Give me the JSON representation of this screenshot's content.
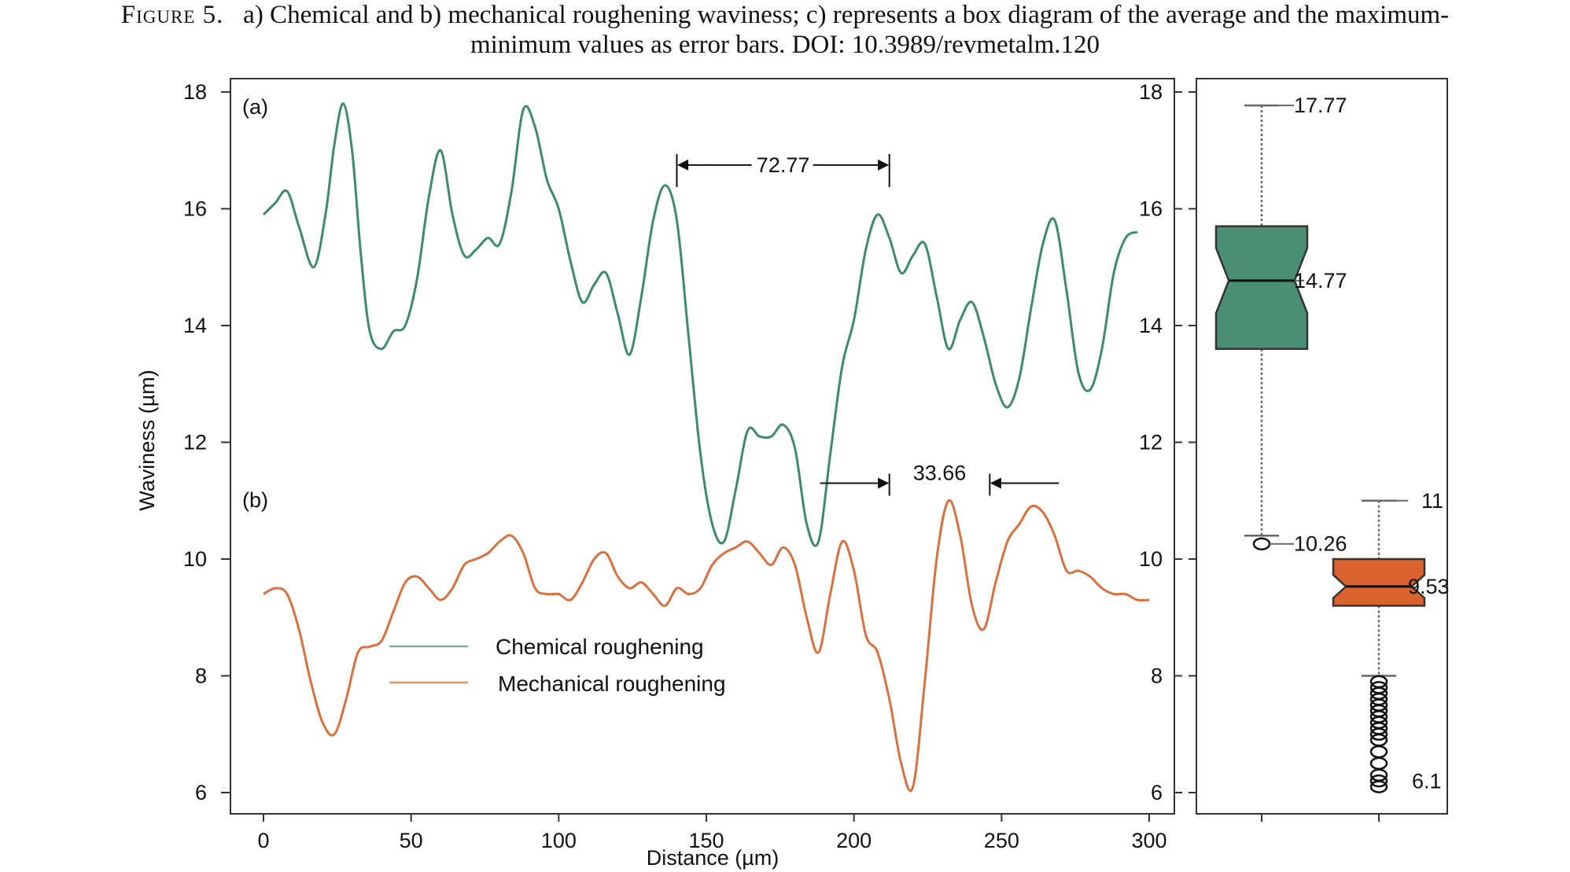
{
  "caption": {
    "figure_label": "Figure 5.",
    "line1": "a) Chemical and b) mechanical roughening waviness; c) represents a box diagram of the average and the maximum-",
    "line2": "minimum values as error bars. ",
    "doi": "DOI: 10.3989/revmetalm.120"
  },
  "colors": {
    "chemical": "#4a8f75",
    "chemical_line": "#3d8a6e",
    "mechanical": "#d9622e",
    "mechanical_line": "#d9703f",
    "axis": "#333333"
  },
  "chart_data": [
    {
      "type": "line",
      "title": "",
      "xlabel": "Distance (µm)",
      "ylabel": "Waviness (µm)",
      "xlim": [
        0,
        300
      ],
      "ylim": [
        6,
        18
      ],
      "x_ticks": [
        "0",
        "50",
        "100",
        "150",
        "200",
        "250",
        "300"
      ],
      "y_ticks": [
        "6",
        "8",
        "10",
        "12",
        "14",
        "16",
        "18"
      ],
      "y_ticks_right": [
        "6",
        "8",
        "10",
        "12",
        "14",
        "16",
        "18"
      ],
      "panel_labels": [
        "(a)",
        "(b)"
      ],
      "legend": "bottom-left",
      "grid": false,
      "series": [
        {
          "name": "Chemical roughening",
          "x": [
            0,
            4,
            8,
            12,
            17,
            21,
            24,
            27,
            30,
            33,
            36,
            40,
            44,
            48,
            52,
            56,
            60,
            64,
            68,
            72,
            76,
            80,
            84,
            88,
            92,
            96,
            100,
            104,
            108,
            112,
            116,
            120,
            124,
            128,
            132,
            136,
            140,
            144,
            148,
            152,
            156,
            160,
            164,
            168,
            172,
            176,
            180,
            184,
            188,
            192,
            196,
            200,
            204,
            208,
            212,
            216,
            220,
            224,
            228,
            232,
            236,
            240,
            244,
            248,
            252,
            256,
            260,
            264,
            268,
            272,
            276,
            280,
            284,
            288,
            292,
            296
          ],
          "values": [
            15.9,
            16.1,
            16.3,
            15.7,
            15.0,
            15.9,
            17.1,
            17.8,
            17.0,
            15.2,
            13.9,
            13.6,
            13.9,
            14.0,
            14.8,
            16.2,
            17.0,
            15.9,
            15.2,
            15.3,
            15.5,
            15.4,
            16.3,
            17.7,
            17.4,
            16.5,
            16.0,
            15.1,
            14.4,
            14.7,
            14.9,
            14.2,
            13.5,
            14.5,
            15.8,
            16.4,
            15.8,
            13.8,
            11.8,
            10.6,
            10.3,
            11.2,
            12.2,
            12.1,
            12.1,
            12.3,
            11.9,
            10.6,
            10.3,
            11.8,
            13.3,
            14.1,
            15.3,
            15.9,
            15.5,
            14.9,
            15.2,
            15.4,
            14.5,
            13.6,
            14.1,
            14.4,
            13.8,
            13.0,
            12.6,
            13.1,
            14.3,
            15.4,
            15.8,
            14.6,
            13.2,
            12.9,
            13.6,
            14.9,
            15.5,
            15.6
          ]
        },
        {
          "name": "Mechanical roughening",
          "x": [
            0,
            4,
            8,
            12,
            16,
            20,
            24,
            28,
            32,
            36,
            40,
            44,
            48,
            52,
            56,
            60,
            64,
            68,
            72,
            76,
            80,
            84,
            88,
            92,
            96,
            100,
            104,
            108,
            112,
            116,
            120,
            124,
            128,
            132,
            136,
            140,
            144,
            148,
            152,
            156,
            160,
            164,
            168,
            172,
            176,
            180,
            184,
            188,
            192,
            196,
            200,
            204,
            208,
            212,
            216,
            220,
            224,
            228,
            232,
            236,
            240,
            244,
            248,
            252,
            256,
            260,
            264,
            268,
            272,
            276,
            280,
            284,
            288,
            292,
            296,
            300
          ],
          "values": [
            9.4,
            9.5,
            9.4,
            8.8,
            7.9,
            7.2,
            7.0,
            7.6,
            8.4,
            8.5,
            8.6,
            9.1,
            9.6,
            9.7,
            9.5,
            9.3,
            9.5,
            9.9,
            10.0,
            10.1,
            10.3,
            10.4,
            10.1,
            9.5,
            9.4,
            9.4,
            9.3,
            9.6,
            10.0,
            10.1,
            9.7,
            9.5,
            9.6,
            9.4,
            9.2,
            9.5,
            9.4,
            9.5,
            9.9,
            10.1,
            10.2,
            10.3,
            10.1,
            9.9,
            10.2,
            9.9,
            9.0,
            8.4,
            9.4,
            10.3,
            9.8,
            8.7,
            8.4,
            7.6,
            6.5,
            6.1,
            7.9,
            10.0,
            11.0,
            10.4,
            9.2,
            8.8,
            9.6,
            10.3,
            10.6,
            10.9,
            10.8,
            10.4,
            9.8,
            9.8,
            9.7,
            9.5,
            9.4,
            9.4,
            9.3,
            9.3
          ]
        }
      ],
      "annotations": [
        {
          "text": "72.77",
          "x_start": 140,
          "x_end": 212,
          "y": 16.75
        },
        {
          "text": "33.66",
          "x_start": 212,
          "x_end": 246,
          "y": 11.3
        }
      ]
    },
    {
      "type": "box",
      "ylim": [
        6,
        18
      ],
      "boxes": [
        {
          "color": "chemical",
          "max": 17.77,
          "q3": 15.7,
          "median": 14.77,
          "q1": 13.6,
          "min": 10.4,
          "outliers": [
            10.26
          ],
          "labels": [
            "17.77",
            "14.77",
            "10.26"
          ]
        },
        {
          "color": "mechanical",
          "max": 11,
          "q3": 10.0,
          "median": 9.53,
          "q1": 9.2,
          "min": 8.0,
          "outliers": [
            7.9,
            7.8,
            7.7,
            7.6,
            7.5,
            7.4,
            7.3,
            7.2,
            7.1,
            7.0,
            6.9,
            6.7,
            6.5,
            6.3,
            6.2,
            6.1
          ],
          "labels": [
            "11",
            "9.53",
            "6.1"
          ]
        }
      ]
    }
  ]
}
